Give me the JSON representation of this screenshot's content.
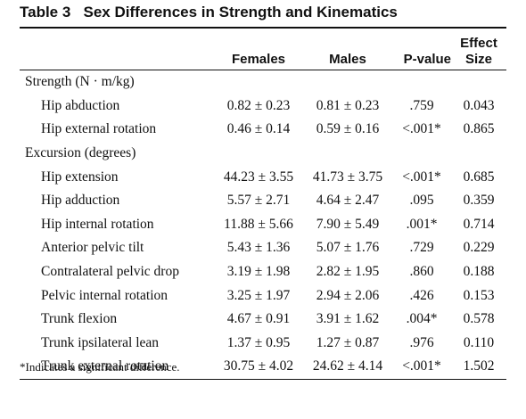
{
  "title": "Table 3   Sex Differences in Strength and Kinematics",
  "table": {
    "header": [
      "Females",
      "Males",
      "P-value",
      "Effect Size"
    ],
    "sections": [
      {
        "title": "Strength (N · m/kg)",
        "rows": [
          [
            "Hip abduction",
            "0.82 ± 0.23",
            "0.81 ± 0.23",
            ".759",
            "0.043"
          ],
          [
            "Hip external rotation",
            "0.46 ± 0.14",
            "0.59 ± 0.16",
            "<.001*",
            "0.865"
          ]
        ]
      },
      {
        "title": "Excursion (degrees)",
        "rows": [
          [
            "Hip extension",
            "44.23 ± 3.55",
            "41.73 ± 3.75",
            "<.001*",
            "0.685"
          ],
          [
            "Hip adduction",
            "5.57 ± 2.71",
            "4.64 ± 2.47",
            ".095",
            "0.359"
          ],
          [
            "Hip internal rotation",
            "11.88 ± 5.66",
            "7.90 ± 5.49",
            ".001*",
            "0.714"
          ],
          [
            "Anterior pelvic tilt",
            "5.43 ± 1.36",
            "5.07 ± 1.76",
            ".729",
            "0.229"
          ],
          [
            "Contralateral pelvic drop",
            "3.19 ± 1.98",
            "2.82 ± 1.95",
            ".860",
            "0.188"
          ],
          [
            "Pelvic internal rotation",
            "3.25 ± 1.97",
            "2.94 ± 2.06",
            ".426",
            "0.153"
          ],
          [
            "Trunk flexion",
            "4.67 ± 0.91",
            "3.91 ± 1.62",
            ".004*",
            "0.578"
          ],
          [
            "Trunk ipsilateral lean",
            "1.37 ± 0.95",
            "1.27 ± 0.87",
            ".976",
            "0.110"
          ],
          [
            "Trunk external rotation",
            "30.75 ± 4.02",
            "24.62 ± 4.14",
            "<.001*",
            "1.502"
          ]
        ]
      }
    ]
  },
  "footnote": "*Indicates a significant difference."
}
